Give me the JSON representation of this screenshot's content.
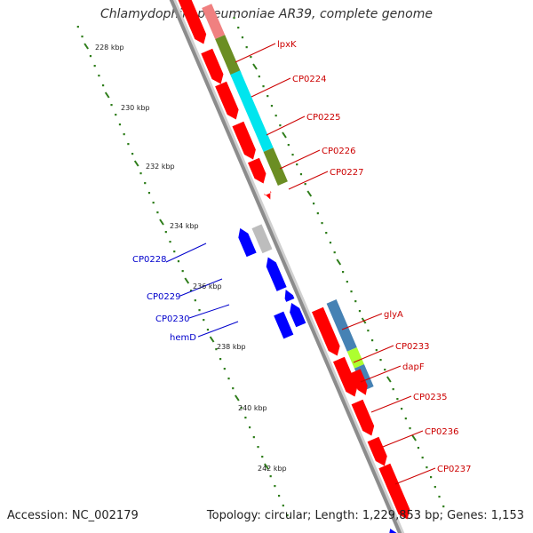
{
  "title": "Chlamydophila pneumoniae AR39, complete genome",
  "accession": "Accession: NC_002179",
  "topology": "Topology: circular; Length: 1,229,853 bp; Genes: 1,153",
  "colors": {
    "backbone": "#8c8c8c",
    "gc_dots": "#2e7d1a",
    "label_red": "#cc0000",
    "label_blue": "#0000cc",
    "gene_red": "#ff0000",
    "gene_blue": "#0000ff",
    "gene_grey": "#bdbdbd",
    "gene_pink": "#f08080",
    "cog_olive": "#6b8e23",
    "cog_cyan": "#00e5ee",
    "cog_steel": "#4682b4",
    "cog_lime": "#adff2f"
  },
  "kbp_ticks": [
    "228 kbp",
    "230 kbp",
    "232 kbp",
    "234 kbp",
    "236 kbp",
    "238 kbp",
    "240 kbp",
    "242 kbp"
  ],
  "gene_labels": {
    "right": [
      "lpxK",
      "CP0224",
      "CP0225",
      "CP0226",
      "CP0227",
      "glyA",
      "CP0233",
      "dapF",
      "CP0235",
      "CP0236",
      "CP0237"
    ],
    "left": [
      "CP0228",
      "CP0229",
      "CP0230",
      "hemD"
    ]
  }
}
